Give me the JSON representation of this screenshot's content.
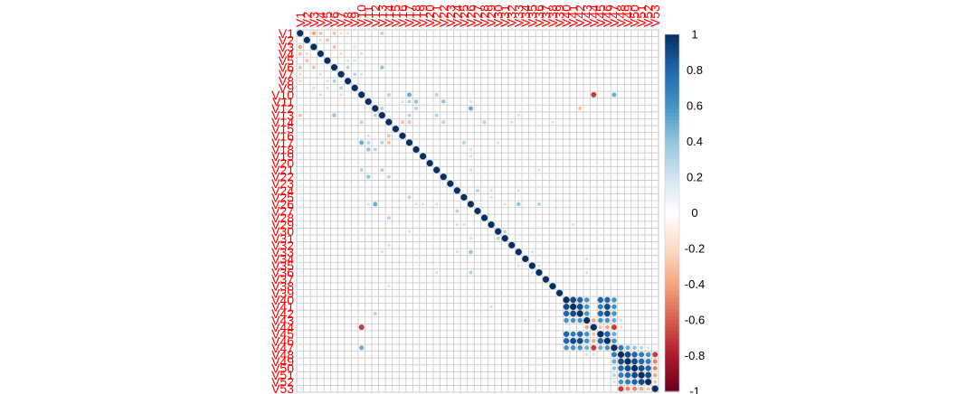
{
  "chart_data": {
    "type": "heatmap",
    "subtype": "correlation-circles",
    "labels": [
      "V1",
      "V2",
      "V3",
      "V4",
      "V5",
      "V6",
      "V7",
      "V8",
      "V9",
      "V10",
      "V11",
      "V12",
      "V13",
      "V14",
      "V15",
      "V16",
      "V17",
      "V18",
      "V19",
      "V20",
      "V21",
      "V22",
      "V23",
      "V24",
      "V25",
      "V26",
      "V27",
      "V28",
      "V29",
      "V30",
      "V31",
      "V32",
      "V33",
      "V34",
      "V35",
      "V36",
      "V37",
      "V38",
      "V39",
      "V40",
      "V41",
      "V42",
      "V43",
      "V44",
      "V45",
      "V46",
      "V47",
      "V48",
      "V49",
      "V50",
      "V51",
      "V52",
      "V53"
    ],
    "label_color": "#ff0000",
    "diagonal_value": 1,
    "correlations": [
      [
        1,
        3,
        -0.4
      ],
      [
        1,
        4,
        -0.3
      ],
      [
        1,
        7,
        -0.2
      ],
      [
        1,
        6,
        -0.3
      ],
      [
        1,
        8,
        -0.2
      ],
      [
        1,
        13,
        -0.3
      ],
      [
        2,
        4,
        -0.2
      ],
      [
        2,
        5,
        -0.3
      ],
      [
        3,
        6,
        -0.3
      ],
      [
        3,
        9,
        -0.2
      ],
      [
        4,
        7,
        -0.2
      ],
      [
        4,
        10,
        0.2
      ],
      [
        5,
        8,
        0.2
      ],
      [
        5,
        9,
        0.2
      ],
      [
        6,
        8,
        0.3
      ],
      [
        6,
        13,
        0.4
      ],
      [
        7,
        9,
        0.3
      ],
      [
        7,
        10,
        0.2
      ],
      [
        10,
        17,
        0.5
      ],
      [
        10,
        14,
        0.3
      ],
      [
        10,
        21,
        0.3
      ],
      [
        10,
        44,
        -0.7
      ],
      [
        10,
        47,
        0.5
      ],
      [
        11,
        18,
        0.4
      ],
      [
        11,
        17,
        0.3
      ],
      [
        11,
        22,
        0.4
      ],
      [
        11,
        16,
        0.2
      ],
      [
        11,
        26,
        0.2
      ],
      [
        12,
        13,
        0.3
      ],
      [
        12,
        18,
        0.3
      ],
      [
        12,
        26,
        0.5
      ],
      [
        12,
        42,
        -0.3
      ],
      [
        13,
        21,
        0.3
      ],
      [
        13,
        17,
        0.3
      ],
      [
        13,
        33,
        0.2
      ],
      [
        14,
        16,
        -0.3
      ],
      [
        14,
        17,
        -0.3
      ],
      [
        14,
        22,
        0.3
      ],
      [
        14,
        28,
        0.3
      ],
      [
        14,
        32,
        0.2
      ],
      [
        14,
        38,
        0.2
      ],
      [
        17,
        25,
        0.3
      ],
      [
        17,
        30,
        0.2
      ],
      [
        18,
        26,
        0.2
      ],
      [
        19,
        26,
        0.2
      ],
      [
        21,
        26,
        0.2
      ],
      [
        21,
        36,
        0.2
      ],
      [
        24,
        27,
        0.3
      ],
      [
        24,
        29,
        0.2
      ],
      [
        24,
        33,
        0.2
      ],
      [
        25,
        29,
        0.2
      ],
      [
        26,
        33,
        0.4
      ],
      [
        26,
        36,
        0.3
      ],
      [
        26,
        31,
        0.2
      ],
      [
        29,
        41,
        0.2
      ],
      [
        30,
        31,
        0.3
      ],
      [
        33,
        35,
        0.2
      ],
      [
        34,
        43,
        0.2
      ],
      [
        35,
        36,
        0.2
      ],
      [
        36,
        43,
        0.2
      ],
      [
        40,
        41,
        0.9
      ],
      [
        40,
        42,
        0.8
      ],
      [
        40,
        43,
        0.6
      ],
      [
        40,
        45,
        0.8
      ],
      [
        40,
        46,
        0.8
      ],
      [
        40,
        47,
        0.6
      ],
      [
        41,
        42,
        0.9
      ],
      [
        41,
        43,
        0.6
      ],
      [
        41,
        45,
        0.7
      ],
      [
        41,
        46,
        0.9
      ],
      [
        41,
        47,
        0.6
      ],
      [
        42,
        43,
        0.6
      ],
      [
        42,
        45,
        0.8
      ],
      [
        42,
        46,
        0.9
      ],
      [
        42,
        47,
        0.6
      ],
      [
        43,
        44,
        -0.4
      ],
      [
        43,
        45,
        0.6
      ],
      [
        43,
        46,
        0.6
      ],
      [
        43,
        47,
        0.5
      ],
      [
        43,
        48,
        0.2
      ],
      [
        44,
        45,
        -0.3
      ],
      [
        44,
        46,
        -0.4
      ],
      [
        44,
        47,
        -0.7
      ],
      [
        44,
        48,
        -0.2
      ],
      [
        45,
        46,
        0.8
      ],
      [
        45,
        47,
        0.5
      ],
      [
        46,
        47,
        0.6
      ],
      [
        47,
        48,
        0.7
      ],
      [
        47,
        49,
        0.5
      ],
      [
        47,
        50,
        0.4
      ],
      [
        47,
        51,
        0.3
      ],
      [
        47,
        52,
        0.2
      ],
      [
        48,
        49,
        0.9
      ],
      [
        48,
        50,
        0.8
      ],
      [
        48,
        51,
        0.7
      ],
      [
        48,
        52,
        0.6
      ],
      [
        48,
        53,
        -0.7
      ],
      [
        49,
        50,
        0.9
      ],
      [
        49,
        51,
        0.8
      ],
      [
        49,
        52,
        0.7
      ],
      [
        49,
        53,
        -0.5
      ],
      [
        50,
        51,
        0.9
      ],
      [
        50,
        52,
        0.8
      ],
      [
        50,
        53,
        -0.5
      ],
      [
        51,
        52,
        0.9
      ],
      [
        51,
        53,
        -0.4
      ],
      [
        52,
        53,
        -0.3
      ]
    ],
    "colorbar": {
      "ticks": [
        1,
        0.8,
        0.6,
        0.4,
        0.2,
        0,
        -0.2,
        -0.4,
        -0.6,
        -0.8,
        -1
      ],
      "tick_labels": [
        "1",
        "0.8",
        "0.6",
        "0.4",
        "0.2",
        "0",
        "-0.2",
        "-0.4",
        "-0.6",
        "-0.8",
        "-1"
      ],
      "range": [
        -1,
        1
      ],
      "colors": [
        "#67001f",
        "#b2182b",
        "#d6604d",
        "#f4a582",
        "#fddbc7",
        "#ffffff",
        "#d1e5f0",
        "#92c5de",
        "#4393c3",
        "#2166ac",
        "#053061"
      ]
    }
  }
}
